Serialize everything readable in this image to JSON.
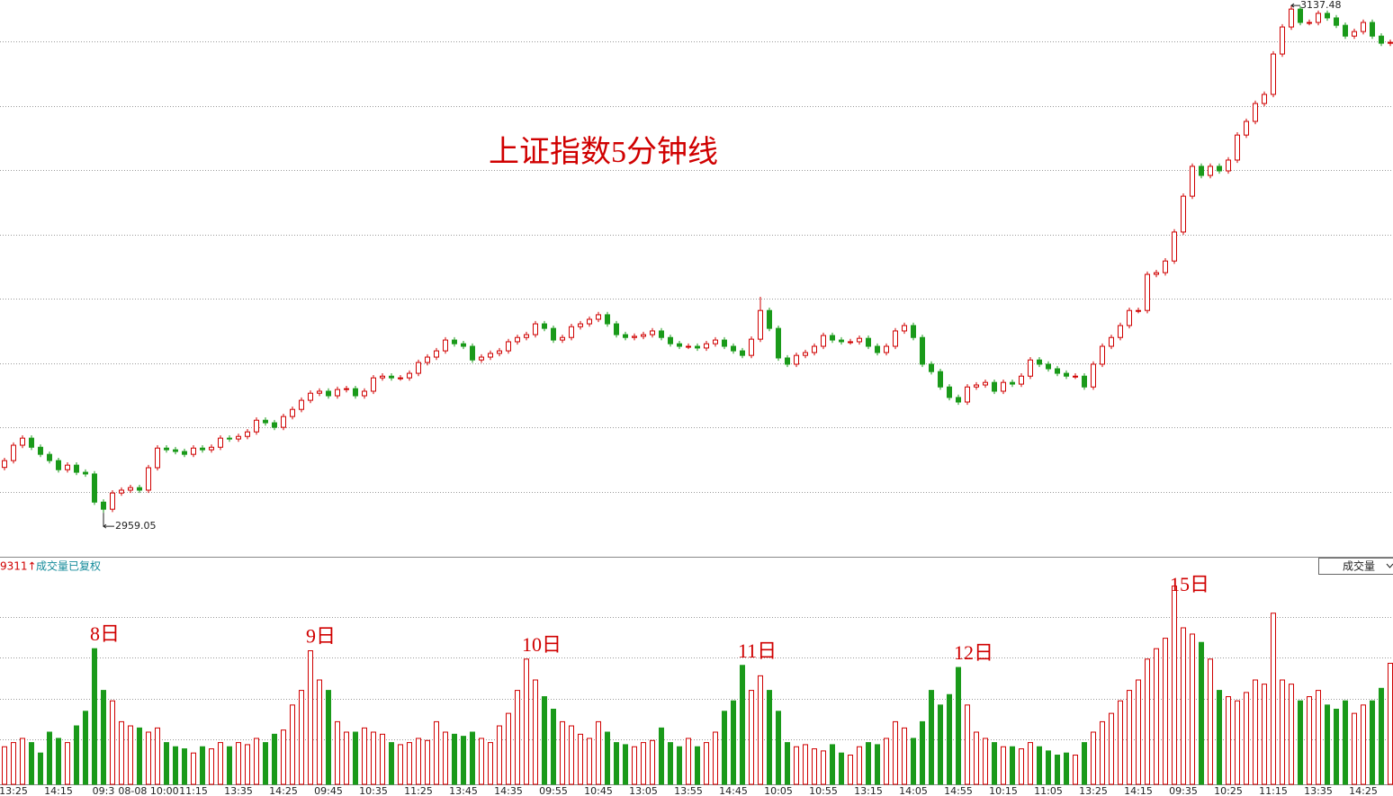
{
  "chart_data": {
    "type": "candlestick",
    "title": "上证指数5分钟线",
    "volume_header": {
      "count": "9311↑",
      "label": "成交量已复权"
    },
    "volume_selector": "成交量",
    "up_color": "#d00000",
    "down_color": "#1a9a1a",
    "grid": true,
    "ylim": [
      2943.9,
      3139.4
    ],
    "volume_ylim": [
      0,
      100
    ],
    "extremes": {
      "low_index": 11,
      "high_index": 143
    },
    "day_labels": [
      {
        "text": "8日",
        "index": 10
      },
      {
        "text": "9日",
        "index": 34
      },
      {
        "text": "10日",
        "index": 58
      },
      {
        "text": "11日",
        "index": 82
      },
      {
        "text": "12日",
        "index": 106
      },
      {
        "text": "15日",
        "index": 130
      }
    ],
    "categories": [
      null,
      "13:25",
      null,
      null,
      null,
      null,
      "14:15",
      null,
      null,
      null,
      null,
      "09:3",
      null,
      null,
      null,
      null,
      "08-08 10:00",
      null,
      null,
      null,
      null,
      "11:15",
      null,
      null,
      null,
      null,
      "13:35",
      null,
      null,
      null,
      null,
      "14:25",
      null,
      null,
      null,
      null,
      "09:45",
      null,
      null,
      null,
      null,
      "10:35",
      null,
      null,
      null,
      null,
      "11:25",
      null,
      null,
      null,
      null,
      "13:45",
      null,
      null,
      null,
      null,
      "14:35",
      null,
      null,
      null,
      null,
      "09:55",
      null,
      null,
      null,
      null,
      "10:45",
      null,
      null,
      null,
      null,
      "13:05",
      null,
      null,
      null,
      null,
      "13:55",
      null,
      null,
      null,
      null,
      "14:45",
      null,
      null,
      null,
      null,
      "10:05",
      null,
      null,
      null,
      null,
      "10:55",
      null,
      null,
      null,
      null,
      "13:15",
      null,
      null,
      null,
      null,
      "14:05",
      null,
      null,
      null,
      null,
      "14:55",
      null,
      null,
      null,
      null,
      "10:15",
      null,
      null,
      null,
      null,
      "11:05",
      null,
      null,
      null,
      null,
      "13:25",
      null,
      null,
      null,
      null,
      "14:15",
      null,
      null,
      null,
      null,
      "09:35",
      null,
      null,
      null,
      null,
      "10:25",
      null,
      null,
      null,
      null,
      "11:15",
      null,
      null,
      null,
      null,
      "13:35",
      null,
      null,
      null,
      null,
      "14:25",
      null,
      null,
      null
    ],
    "open": [
      2975.0,
      2977.4,
      2982.8,
      2985.3,
      2982.1,
      2979.6,
      2977.4,
      2974.2,
      2975.8,
      2973.3,
      2972.7,
      2962.8,
      2960.3,
      2966.0,
      2967.0,
      2967.9,
      2967.0,
      2974.9,
      2981.8,
      2981.2,
      2980.6,
      2979.6,
      2981.8,
      2981.2,
      2982.1,
      2985.3,
      2985.0,
      2985.9,
      2987.5,
      2991.6,
      2990.7,
      2989.1,
      2992.9,
      2995.4,
      2998.6,
      3001.1,
      3001.8,
      3000.2,
      3002.4,
      3002.7,
      3000.2,
      3001.8,
      3006.5,
      3007.1,
      3006.5,
      3006.5,
      3008.1,
      3011.9,
      3013.8,
      3016.0,
      3019.8,
      3018.5,
      3017.6,
      3012.8,
      3013.8,
      3015.1,
      3016.0,
      3019.2,
      3020.7,
      3021.7,
      3025.5,
      3023.9,
      3019.8,
      3020.7,
      3024.5,
      3025.5,
      3027.1,
      3028.7,
      3025.5,
      3021.7,
      3020.7,
      3021.1,
      3021.7,
      3023.0,
      3020.7,
      3018.5,
      3017.6,
      3017.6,
      3017.0,
      3018.5,
      3019.8,
      3017.6,
      3016.0,
      3014.4,
      3020.1,
      3030.2,
      3023.9,
      3013.5,
      3011.3,
      3014.4,
      3015.4,
      3017.6,
      3021.4,
      3019.8,
      3019.2,
      3019.2,
      3020.4,
      3017.6,
      3015.4,
      3017.6,
      3023.0,
      3024.9,
      3020.7,
      3011.3,
      3008.7,
      3003.3,
      2999.6,
      2998.0,
      3003.3,
      3004.0,
      3004.9,
      3001.8,
      3004.9,
      3004.3,
      3007.1,
      3012.8,
      3011.3,
      3009.7,
      3008.1,
      3007.1,
      3007.1,
      3003.3,
      3011.3,
      3017.6,
      3020.7,
      3024.9,
      3030.2,
      3030.2,
      3042.9,
      3043.5,
      3047.6,
      3057.8,
      3070.4,
      3080.9,
      3077.7,
      3080.9,
      3079.3,
      3083.1,
      3091.9,
      3096.7,
      3103.0,
      3106.2,
      3120.4,
      3129.9,
      3136.2,
      3131.5,
      3131.5,
      3134.7,
      3133.1,
      3130.5,
      3126.7,
      3128.3,
      3131.5,
      3126.7,
      3124.2
    ],
    "close": [
      2977.4,
      2982.8,
      2985.3,
      2982.1,
      2979.6,
      2977.4,
      2974.2,
      2975.8,
      2973.3,
      2972.7,
      2962.8,
      2960.3,
      2966.0,
      2967.0,
      2967.9,
      2967.0,
      2974.9,
      2981.8,
      2981.2,
      2980.6,
      2979.6,
      2981.8,
      2981.2,
      2982.1,
      2985.3,
      2985.0,
      2985.9,
      2987.5,
      2991.6,
      2990.7,
      2989.1,
      2992.9,
      2995.4,
      2998.6,
      3001.1,
      3001.8,
      3000.2,
      3002.4,
      3002.7,
      3000.2,
      3001.8,
      3006.5,
      3007.1,
      3006.5,
      3006.5,
      3008.1,
      3011.9,
      3013.8,
      3016.0,
      3019.8,
      3018.5,
      3017.6,
      3012.8,
      3013.8,
      3015.1,
      3016.0,
      3019.2,
      3020.7,
      3021.7,
      3025.5,
      3023.9,
      3019.8,
      3020.7,
      3024.5,
      3025.5,
      3027.1,
      3028.7,
      3025.5,
      3021.7,
      3020.7,
      3021.1,
      3021.7,
      3023.0,
      3020.7,
      3018.5,
      3017.6,
      3017.6,
      3017.0,
      3018.5,
      3019.8,
      3017.6,
      3016.0,
      3014.4,
      3020.1,
      3030.2,
      3023.9,
      3013.5,
      3011.3,
      3014.4,
      3015.4,
      3017.6,
      3021.4,
      3019.8,
      3019.2,
      3019.2,
      3020.4,
      3017.6,
      3015.4,
      3017.6,
      3023.0,
      3024.9,
      3020.7,
      3011.3,
      3008.7,
      3003.3,
      2999.6,
      2998.0,
      3003.3,
      3004.0,
      3004.9,
      3001.8,
      3004.9,
      3004.3,
      3007.1,
      3012.8,
      3011.3,
      3009.7,
      3008.1,
      3007.1,
      3007.1,
      3003.3,
      3011.3,
      3017.6,
      3020.7,
      3024.9,
      3030.2,
      3030.2,
      3042.9,
      3043.5,
      3047.6,
      3057.8,
      3070.4,
      3080.9,
      3077.7,
      3080.9,
      3079.3,
      3083.1,
      3091.9,
      3096.7,
      3103.0,
      3106.2,
      3120.4,
      3129.9,
      3136.2,
      3131.5,
      3131.5,
      3134.7,
      3133.1,
      3130.5,
      3126.7,
      3128.3,
      3131.5,
      3126.7,
      3124.2,
      3124.5
    ],
    "high": [
      2978.4,
      2983.8,
      2986.3,
      2986.3,
      2983.1,
      2980.6,
      2978.4,
      2976.8,
      2976.8,
      2974.3,
      2973.7,
      2963.8,
      2967.0,
      2968.0,
      2968.9,
      2968.9,
      2975.9,
      2982.8,
      2982.8,
      2982.2,
      2981.6,
      2982.8,
      2982.8,
      2983.1,
      2986.3,
      2986.3,
      2986.9,
      2988.5,
      2992.6,
      2992.6,
      2991.7,
      2993.9,
      2996.4,
      2999.6,
      3002.1,
      3002.8,
      3002.8,
      3003.4,
      3003.7,
      3003.7,
      3002.8,
      3007.5,
      3008.1,
      3008.1,
      3007.5,
      3009.1,
      3012.9,
      3014.8,
      3017.0,
      3020.8,
      3020.8,
      3019.5,
      3018.6,
      3014.8,
      3016.1,
      3017.0,
      3020.2,
      3021.7,
      3022.7,
      3026.5,
      3026.5,
      3024.9,
      3021.7,
      3025.5,
      3026.5,
      3028.1,
      3029.7,
      3029.7,
      3026.5,
      3022.7,
      3022.1,
      3022.7,
      3024.0,
      3024.0,
      3021.7,
      3019.5,
      3018.6,
      3018.6,
      3019.5,
      3020.8,
      3020.8,
      3018.6,
      3017.0,
      3021.1,
      3035.0,
      3031.2,
      3024.9,
      3014.5,
      3015.4,
      3016.4,
      3018.6,
      3022.4,
      3022.4,
      3020.8,
      3020.2,
      3021.4,
      3021.4,
      3018.6,
      3018.6,
      3024.0,
      3025.9,
      3025.9,
      3021.7,
      3012.3,
      3009.7,
      3004.3,
      3000.6,
      3004.3,
      3005.0,
      3005.9,
      3005.9,
      3005.9,
      3005.9,
      3008.1,
      3013.8,
      3013.8,
      3012.3,
      3010.7,
      3009.1,
      3008.1,
      3008.1,
      3012.3,
      3018.6,
      3021.7,
      3025.9,
      3031.2,
      3031.2,
      3043.9,
      3044.5,
      3048.6,
      3058.8,
      3071.4,
      3081.9,
      3081.9,
      3081.9,
      3081.9,
      3084.1,
      3092.9,
      3097.7,
      3104.0,
      3107.2,
      3121.4,
      3130.9,
      3137.48,
      3137.2,
      3132.5,
      3135.7,
      3135.7,
      3134.1,
      3131.5,
      3129.3,
      3132.5,
      3132.5,
      3127.7,
      3125.5
    ],
    "low": [
      2974.0,
      2976.4,
      2981.8,
      2981.1,
      2978.6,
      2976.4,
      2973.2,
      2973.2,
      2972.3,
      2971.7,
      2961.8,
      2959.05,
      2959.3,
      2965.0,
      2966.0,
      2966.0,
      2966.0,
      2973.9,
      2980.2,
      2979.6,
      2978.6,
      2978.6,
      2980.2,
      2980.2,
      2981.1,
      2984.0,
      2984.0,
      2984.9,
      2986.5,
      2989.7,
      2988.1,
      2988.1,
      2991.9,
      2994.4,
      2997.6,
      3000.1,
      2999.2,
      2999.2,
      3001.4,
      2999.2,
      2999.2,
      3000.8,
      3005.5,
      3005.5,
      3005.5,
      3005.5,
      3007.1,
      3010.9,
      3012.8,
      3015.0,
      3017.5,
      3016.6,
      3011.8,
      3011.8,
      3012.8,
      3014.1,
      3015.0,
      3018.2,
      3019.7,
      3020.7,
      3022.9,
      3018.8,
      3018.8,
      3019.7,
      3023.5,
      3024.5,
      3026.1,
      3024.5,
      3020.7,
      3019.7,
      3019.7,
      3020.1,
      3020.7,
      3019.7,
      3017.5,
      3016.6,
      3016.6,
      3016.0,
      3016.0,
      3017.5,
      3016.6,
      3015.0,
      3013.4,
      3013.4,
      3019.1,
      3022.9,
      3012.5,
      3010.3,
      3010.3,
      3013.4,
      3014.4,
      3016.6,
      3018.8,
      3018.2,
      3018.2,
      3018.2,
      3016.6,
      3014.4,
      3014.4,
      3016.6,
      3022.0,
      3019.7,
      3010.3,
      3007.7,
      3002.3,
      2998.6,
      2997.0,
      2997.0,
      3002.3,
      3003.0,
      3000.8,
      3000.8,
      3003.3,
      3003.3,
      3006.1,
      3010.3,
      3008.7,
      3007.1,
      3006.1,
      3006.1,
      3002.3,
      3002.3,
      3010.3,
      3016.6,
      3019.7,
      3023.9,
      3029.2,
      3029.2,
      3041.9,
      3042.5,
      3046.6,
      3056.8,
      3069.4,
      3076.7,
      3076.7,
      3078.3,
      3078.3,
      3082.1,
      3090.9,
      3095.7,
      3102.0,
      3105.2,
      3119.4,
      3128.9,
      3130.5,
      3130.5,
      3130.5,
      3132.1,
      3129.5,
      3125.7,
      3125.7,
      3127.3,
      3125.7,
      3123.2,
      3123.2
    ],
    "volume": [
      18,
      20,
      22,
      20,
      15,
      25,
      22,
      20,
      28,
      35,
      65,
      45,
      40,
      30,
      28,
      27,
      25,
      27,
      20,
      18,
      17,
      15,
      18,
      17,
      20,
      18,
      20,
      19,
      22,
      20,
      24,
      26,
      38,
      45,
      64,
      50,
      45,
      30,
      25,
      25,
      27,
      25,
      24,
      20,
      19,
      20,
      22,
      21,
      30,
      25,
      24,
      23,
      25,
      22,
      20,
      28,
      34,
      45,
      60,
      50,
      42,
      36,
      30,
      28,
      24,
      22,
      30,
      25,
      20,
      19,
      18,
      20,
      21,
      27,
      20,
      18,
      22,
      18,
      20,
      25,
      35,
      40,
      57,
      45,
      52,
      45,
      35,
      20,
      18,
      19,
      17,
      16,
      19,
      15,
      14,
      18,
      20,
      19,
      22,
      30,
      27,
      22,
      30,
      45,
      38,
      43,
      56,
      38,
      25,
      22,
      20,
      18,
      18,
      17,
      20,
      18,
      16,
      14,
      15,
      14,
      20,
      25,
      30,
      34,
      40,
      45,
      50,
      60,
      65,
      70,
      95,
      75,
      72,
      68,
      60,
      45,
      42,
      40,
      44,
      50,
      48,
      82,
      50,
      48,
      40,
      42,
      45,
      38,
      36,
      40,
      34,
      38,
      40,
      46,
      58
    ]
  }
}
